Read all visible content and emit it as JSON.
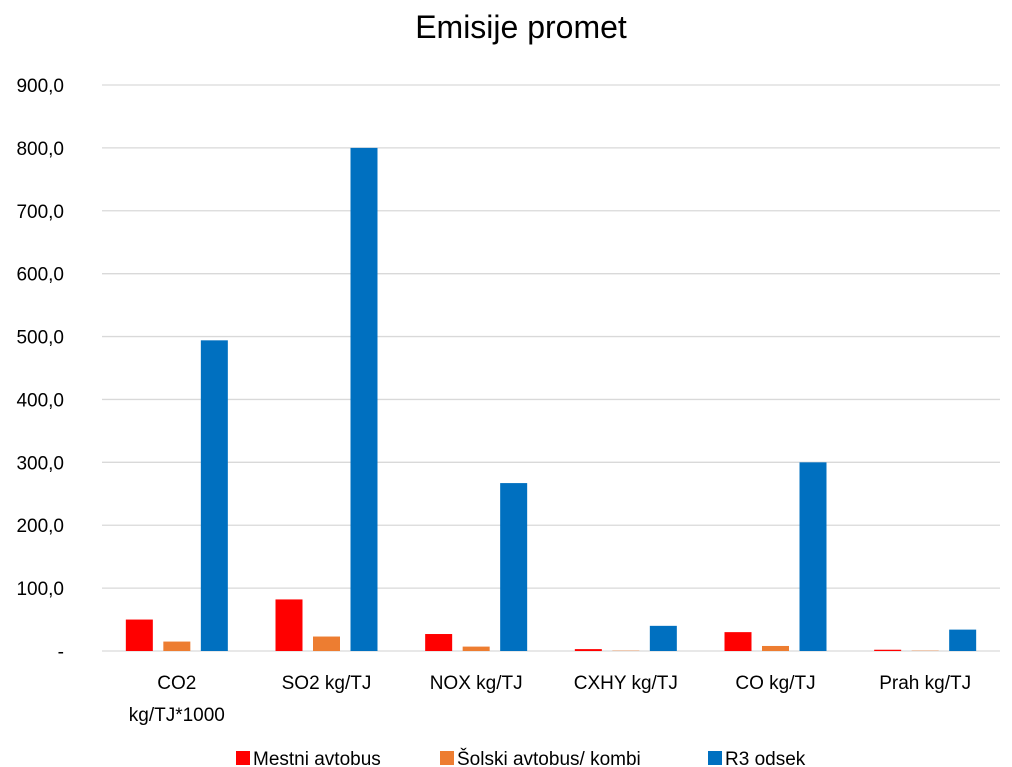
{
  "chart_data": {
    "type": "bar",
    "title": "Emisije promet",
    "categories": [
      [
        "CO2",
        "kg/TJ*1000"
      ],
      [
        "SO2 kg/TJ"
      ],
      [
        "NOX kg/TJ"
      ],
      [
        "CXHY kg/TJ"
      ],
      [
        "CO kg/TJ"
      ],
      [
        "Prah kg/TJ"
      ]
    ],
    "series": [
      {
        "name": "Mestni avtobus",
        "color": "#ff0000",
        "values": [
          50,
          82,
          27,
          3,
          30,
          2
        ]
      },
      {
        "name": "Šolski avtobus/ kombi",
        "color": "#ed7d31",
        "values": [
          15,
          23,
          7,
          0.5,
          8,
          0.5
        ]
      },
      {
        "name": "R3 odsek",
        "color": "#0070c0",
        "values": [
          494,
          800,
          267,
          40,
          300,
          34
        ]
      }
    ],
    "ylim": [
      0,
      900
    ],
    "yticks": [
      0,
      100,
      200,
      300,
      400,
      500,
      600,
      700,
      800,
      900
    ],
    "ytick_labels": [
      "-",
      "100,0",
      "200,0",
      "300,0",
      "400,0",
      "500,0",
      "600,0",
      "700,0",
      "800,0",
      "900,0"
    ],
    "grid": true,
    "legend_position": "bottom"
  }
}
